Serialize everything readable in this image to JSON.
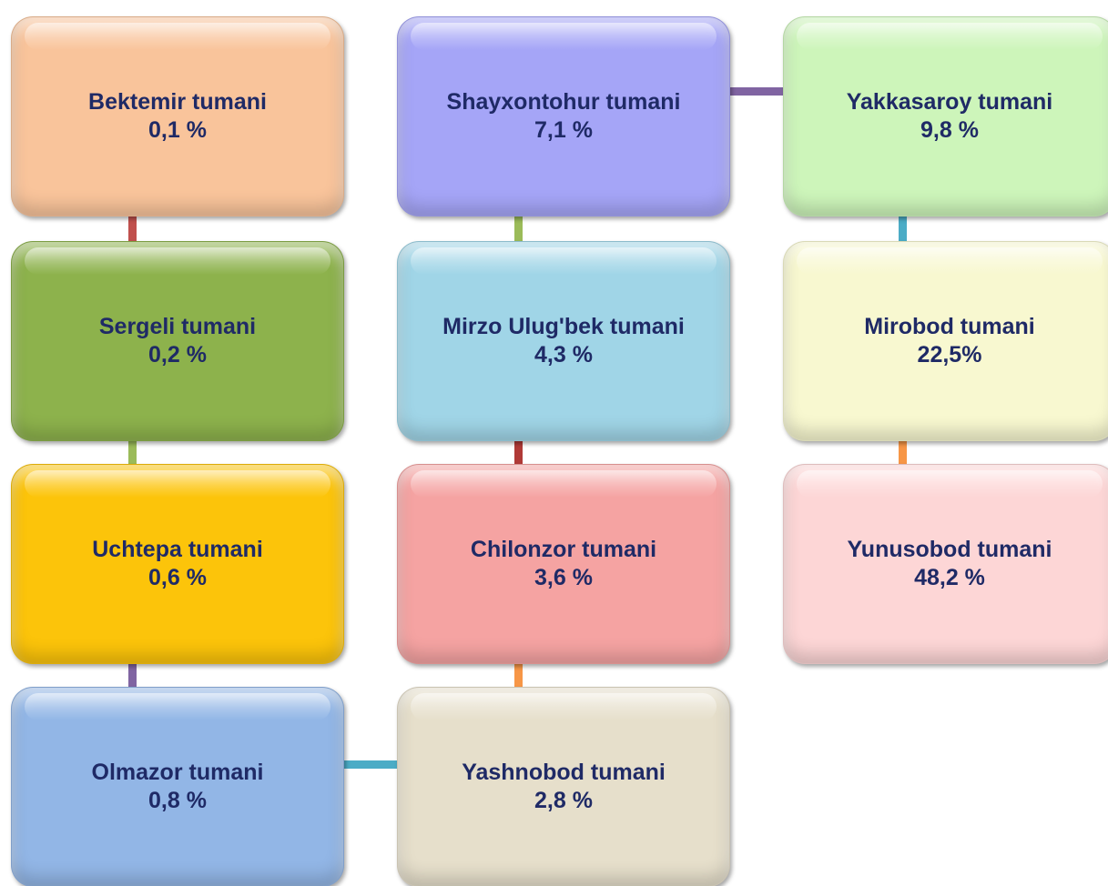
{
  "nodes": [
    {
      "label": "Bektemir tumani",
      "value": "0,1 %"
    },
    {
      "label": "Sergeli tumani",
      "value": "0,2 %"
    },
    {
      "label": "Uchtepa tumani",
      "value": "0,6 %"
    },
    {
      "label": "Olmazor tumani",
      "value": "0,8 %"
    },
    {
      "label": "Yashnobod tumani",
      "value": "2,8 %"
    },
    {
      "label": "Chilonzor tumani",
      "value": "3,6 %"
    },
    {
      "label": "Mirzo Ulug'bek tumani",
      "value": "4,3 %"
    },
    {
      "label": "Shayxontohur tumani",
      "value": "7,1 %"
    },
    {
      "label": "Yakkasaroy tumani",
      "value": "9,8 %"
    },
    {
      "label": "Mirobod tumani",
      "value": "22,5%"
    },
    {
      "label": "Yunusobod tumani",
      "value": "48,2 %"
    }
  ]
}
